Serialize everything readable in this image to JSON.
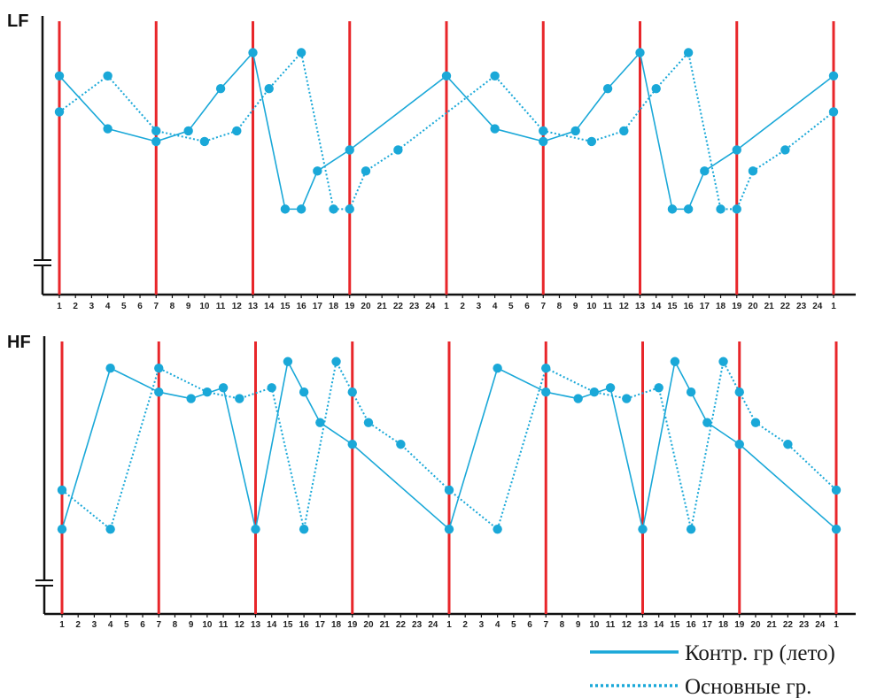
{
  "colors": {
    "series": "#1aa8d8",
    "marker_lines": "#e8262a",
    "axis": "#111111"
  },
  "chart_data": [
    {
      "type": "line",
      "title": "LF",
      "categories": [
        "1",
        "2",
        "3",
        "4",
        "5",
        "6",
        "7",
        "8",
        "9",
        "10",
        "11",
        "12",
        "13",
        "14",
        "15",
        "16",
        "17",
        "18",
        "19",
        "20",
        "21",
        "22",
        "23",
        "24",
        "1",
        "2",
        "3",
        "4",
        "5",
        "6",
        "7",
        "8",
        "9",
        "10",
        "11",
        "12",
        "13",
        "14",
        "15",
        "16",
        "17",
        "18",
        "19",
        "20",
        "21",
        "22",
        "23",
        "24",
        "1"
      ],
      "marker_positions": [
        0,
        6,
        12,
        18,
        24,
        30,
        36,
        42,
        48
      ],
      "axis_break": true,
      "ylim": [
        0,
        100
      ],
      "series": [
        {
          "name": "Контр. гр (лето)",
          "style": "solid",
          "points": [
            [
              0,
              80
            ],
            [
              3,
              55
            ],
            [
              6,
              49
            ],
            [
              8,
              54
            ],
            [
              10,
              74
            ],
            [
              12,
              91
            ],
            [
              14,
              17
            ],
            [
              15,
              17
            ],
            [
              16,
              35
            ],
            [
              18,
              45
            ],
            [
              24,
              80
            ],
            [
              27,
              55
            ],
            [
              30,
              49
            ],
            [
              32,
              54
            ],
            [
              34,
              74
            ],
            [
              36,
              91
            ],
            [
              38,
              17
            ],
            [
              39,
              17
            ],
            [
              40,
              35
            ],
            [
              42,
              45
            ],
            [
              48,
              80
            ]
          ]
        },
        {
          "name": "Основные гр.",
          "style": "dotted",
          "points": [
            [
              0,
              63
            ],
            [
              3,
              80
            ],
            [
              6,
              54
            ],
            [
              9,
              49
            ],
            [
              11,
              54
            ],
            [
              13,
              74
            ],
            [
              15,
              91
            ],
            [
              17,
              17
            ],
            [
              18,
              17
            ],
            [
              19,
              35
            ],
            [
              21,
              45
            ],
            [
              27,
              80
            ],
            [
              30,
              54
            ],
            [
              33,
              49
            ],
            [
              35,
              54
            ],
            [
              37,
              74
            ],
            [
              39,
              91
            ],
            [
              41,
              17
            ],
            [
              42,
              17
            ],
            [
              43,
              35
            ],
            [
              45,
              45
            ],
            [
              48,
              63
            ]
          ]
        }
      ]
    },
    {
      "type": "line",
      "title": "HF",
      "categories": [
        "1",
        "2",
        "3",
        "4",
        "5",
        "6",
        "7",
        "8",
        "9",
        "10",
        "11",
        "12",
        "13",
        "14",
        "15",
        "16",
        "17",
        "18",
        "19",
        "20",
        "21",
        "22",
        "23",
        "24",
        "1",
        "2",
        "3",
        "4",
        "5",
        "6",
        "7",
        "8",
        "9",
        "10",
        "11",
        "12",
        "13",
        "14",
        "15",
        "16",
        "17",
        "18",
        "19",
        "20",
        "21",
        "22",
        "23",
        "24",
        "1"
      ],
      "marker_positions": [
        0,
        6,
        12,
        18,
        24,
        30,
        36,
        42,
        48
      ],
      "axis_break": true,
      "ylim": [
        0,
        100
      ],
      "series": [
        {
          "name": "Контр. гр (лето)",
          "style": "solid",
          "points": [
            [
              0,
              17
            ],
            [
              3,
              91
            ],
            [
              6,
              80
            ],
            [
              8,
              77
            ],
            [
              10,
              82
            ],
            [
              12,
              17
            ],
            [
              14,
              94
            ],
            [
              15,
              80
            ],
            [
              16,
              66
            ],
            [
              18,
              56
            ],
            [
              24,
              17
            ],
            [
              27,
              91
            ],
            [
              30,
              80
            ],
            [
              32,
              77
            ],
            [
              34,
              82
            ],
            [
              36,
              17
            ],
            [
              38,
              94
            ],
            [
              39,
              80
            ],
            [
              40,
              66
            ],
            [
              42,
              56
            ],
            [
              48,
              17
            ]
          ]
        },
        {
          "name": "Основные гр.",
          "style": "dotted",
          "points": [
            [
              0,
              35
            ],
            [
              3,
              17
            ],
            [
              6,
              91
            ],
            [
              9,
              80
            ],
            [
              11,
              77
            ],
            [
              13,
              82
            ],
            [
              15,
              17
            ],
            [
              17,
              94
            ],
            [
              18,
              80
            ],
            [
              19,
              66
            ],
            [
              21,
              56
            ],
            [
              24,
              35
            ],
            [
              27,
              17
            ],
            [
              30,
              91
            ],
            [
              33,
              80
            ],
            [
              35,
              77
            ],
            [
              37,
              82
            ],
            [
              39,
              17
            ],
            [
              41,
              94
            ],
            [
              42,
              80
            ],
            [
              43,
              66
            ],
            [
              45,
              56
            ],
            [
              48,
              35
            ]
          ]
        }
      ]
    }
  ],
  "legend": {
    "placement": "bottom-right",
    "items": [
      {
        "label": "Контр. гр (лето)",
        "style": "solid"
      },
      {
        "label": "Основные гр.",
        "style": "dotted"
      }
    ]
  }
}
